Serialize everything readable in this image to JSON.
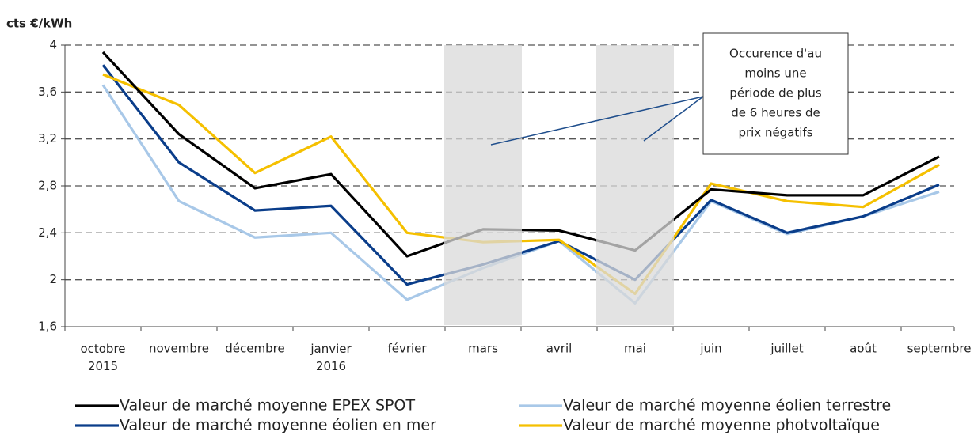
{
  "chart_data": {
    "type": "line",
    "y_label": "cts €/kWh",
    "categories": [
      "octobre 2015",
      "novembre",
      "décembre",
      "janvier 2016",
      "février",
      "mars",
      "avril",
      "mai",
      "juin",
      "juillet",
      "août",
      "septembre"
    ],
    "series": [
      {
        "name": "Valeur de marché moyenne EPEX SPOT",
        "color": "#000000",
        "values": [
          3.94,
          3.24,
          2.78,
          2.9,
          2.2,
          2.43,
          2.42,
          2.25,
          2.77,
          2.72,
          2.72,
          3.05
        ]
      },
      {
        "name": "Valeur de marché moyenne éolien terrestre",
        "color": "#a8c8e8",
        "values": [
          3.66,
          2.67,
          2.36,
          2.4,
          1.83,
          2.1,
          2.33,
          1.8,
          2.67,
          2.39,
          2.54,
          2.75
        ]
      },
      {
        "name": "Valeur de marché moyenne éolien en mer",
        "color": "#0a3d8a",
        "values": [
          3.83,
          3.0,
          2.59,
          2.63,
          1.96,
          2.13,
          2.33,
          2.0,
          2.68,
          2.4,
          2.54,
          2.81
        ]
      },
      {
        "name": "Valeur de marché moyenne photvoltaïque",
        "color": "#f5c000",
        "values": [
          3.75,
          3.49,
          2.91,
          3.22,
          2.4,
          2.32,
          2.34,
          1.88,
          2.82,
          2.67,
          2.62,
          2.98
        ]
      }
    ],
    "ylim": [
      1.6,
      4
    ],
    "yticks": [
      {
        "value": 1.6,
        "label": "1,6"
      },
      2,
      {
        "value": 2.4,
        "label": "2,4"
      },
      {
        "value": 2.8,
        "label": "2,8"
      },
      {
        "value": 3.2,
        "label": "3,2"
      },
      {
        "value": 3.6,
        "label": "3,6"
      },
      4
    ],
    "grid": true,
    "shaded_categories": [
      "mars",
      "mai"
    ],
    "annotation": [
      "Occurence d'au",
      "moins une",
      "période de plus",
      "de 6 heures de",
      "prix négatifs"
    ]
  }
}
